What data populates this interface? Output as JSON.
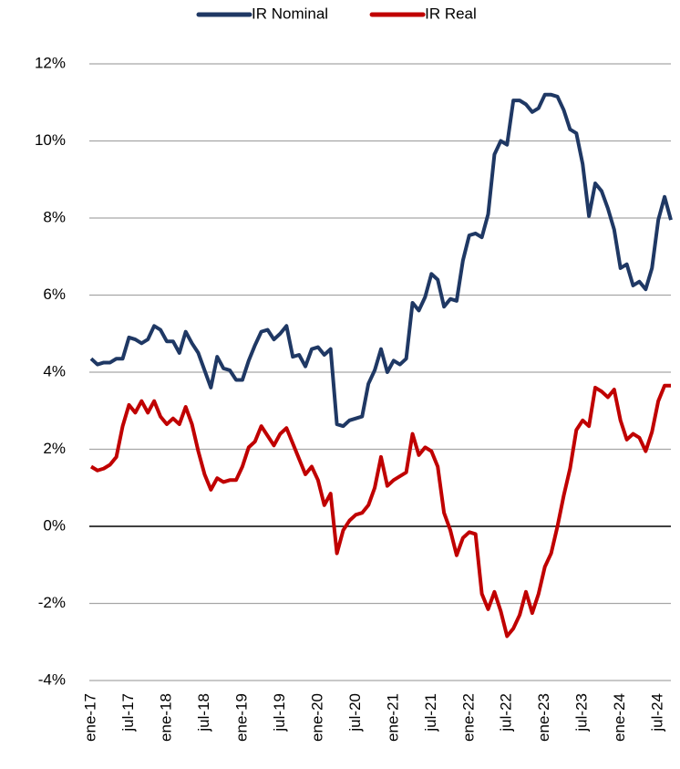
{
  "chart_data": {
    "type": "line",
    "categories": [
      "ene-17",
      null,
      null,
      null,
      null,
      null,
      "jul-17",
      null,
      null,
      null,
      null,
      null,
      "ene-18",
      null,
      null,
      null,
      null,
      null,
      "jul-18",
      null,
      null,
      null,
      null,
      null,
      "ene-19",
      null,
      null,
      null,
      null,
      null,
      "jul-19",
      null,
      null,
      null,
      null,
      null,
      "ene-20",
      null,
      null,
      null,
      null,
      null,
      "jul-20",
      null,
      null,
      null,
      null,
      null,
      "ene-21",
      null,
      null,
      null,
      null,
      null,
      "jul-21",
      null,
      null,
      null,
      null,
      null,
      "ene-22",
      null,
      null,
      null,
      null,
      null,
      "jul-22",
      null,
      null,
      null,
      null,
      null,
      "ene-23",
      null,
      null,
      null,
      null,
      null,
      "jul-23",
      null,
      null,
      null,
      null,
      null,
      "ene-24",
      null,
      null,
      null,
      null,
      null,
      "jul-24",
      null,
      null
    ],
    "series": [
      {
        "name": "IR Nominal",
        "color": "#1f3864",
        "values": [
          4.35,
          4.2,
          4.25,
          4.25,
          4.35,
          4.35,
          4.9,
          4.85,
          4.75,
          4.85,
          5.2,
          5.1,
          4.8,
          4.8,
          4.5,
          5.05,
          4.75,
          4.5,
          4.05,
          3.6,
          4.4,
          4.1,
          4.05,
          3.8,
          3.8,
          4.3,
          4.7,
          5.05,
          5.1,
          4.85,
          5.0,
          5.2,
          4.4,
          4.45,
          4.15,
          4.6,
          4.65,
          4.45,
          4.6,
          2.65,
          2.6,
          2.75,
          2.8,
          2.85,
          3.7,
          4.05,
          4.6,
          4.0,
          4.3,
          4.2,
          4.35,
          5.8,
          5.6,
          5.95,
          6.55,
          6.4,
          5.7,
          5.9,
          5.85,
          6.9,
          7.55,
          7.6,
          7.5,
          8.1,
          9.65,
          10.0,
          9.9,
          11.05,
          11.05,
          10.95,
          10.75,
          10.85,
          11.2,
          11.2,
          11.15,
          10.8,
          10.3,
          10.2,
          9.4,
          8.05,
          8.9,
          8.7,
          8.25,
          7.7,
          6.7,
          6.8,
          6.25,
          6.35,
          6.15,
          6.7,
          7.95,
          8.55,
          7.95
        ]
      },
      {
        "name": "IR Real",
        "color": "#c00000",
        "values": [
          1.55,
          1.45,
          1.5,
          1.6,
          1.8,
          2.6,
          3.15,
          2.95,
          3.25,
          2.95,
          3.25,
          2.85,
          2.65,
          2.8,
          2.65,
          3.1,
          2.65,
          1.95,
          1.35,
          0.95,
          1.25,
          1.15,
          1.2,
          1.2,
          1.55,
          2.05,
          2.2,
          2.6,
          2.35,
          2.1,
          2.4,
          2.55,
          2.15,
          1.75,
          1.35,
          1.55,
          1.2,
          0.55,
          0.85,
          -0.7,
          -0.1,
          0.15,
          0.3,
          0.35,
          0.55,
          1.0,
          1.8,
          1.05,
          1.2,
          1.3,
          1.4,
          2.4,
          1.85,
          2.05,
          1.95,
          1.55,
          0.35,
          -0.1,
          -0.75,
          -0.3,
          -0.15,
          -0.2,
          -1.75,
          -2.15,
          -1.7,
          -2.2,
          -2.85,
          -2.65,
          -2.3,
          -1.7,
          -2.25,
          -1.75,
          -1.05,
          -0.7,
          0.0,
          0.8,
          1.5,
          2.5,
          2.75,
          2.6,
          3.6,
          3.5,
          3.35,
          3.55,
          2.75,
          2.25,
          2.4,
          2.3,
          1.95,
          2.45,
          3.25,
          3.65,
          3.65
        ]
      }
    ],
    "ylim": [
      -4,
      12
    ],
    "yticks": [
      {
        "value": -4,
        "label": "-4%"
      },
      {
        "value": -2,
        "label": "-2%"
      },
      {
        "value": 0,
        "label": "0%"
      },
      {
        "value": 2,
        "label": "2%"
      },
      {
        "value": 4,
        "label": "4%"
      },
      {
        "value": 6,
        "label": "6%"
      },
      {
        "value": 8,
        "label": "8%"
      },
      {
        "value": 10,
        "label": "10%"
      },
      {
        "value": 12,
        "label": "12%"
      }
    ],
    "grid": true,
    "legend": "top"
  }
}
